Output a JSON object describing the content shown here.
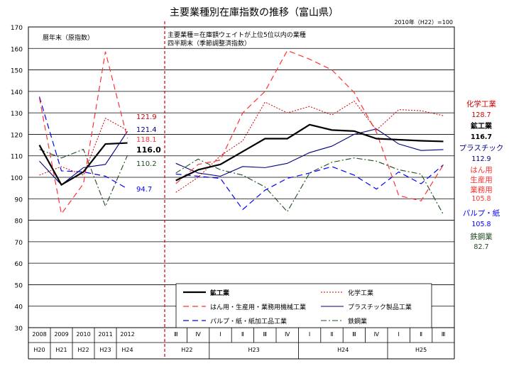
{
  "chart_data": {
    "type": "line",
    "title": "主要業種別在庫指数の推移（富山県）",
    "base_note": "2010年（H22）=100",
    "ylim": [
      30,
      170
    ],
    "y_ticks": [
      30,
      40,
      50,
      60,
      70,
      80,
      90,
      100,
      110,
      120,
      130,
      140,
      150,
      160,
      170
    ],
    "grid": true,
    "left_panel": {
      "caption": "暦年末（原指数）",
      "categories": [
        "2008",
        "2009",
        "2010",
        "2011",
        "2012"
      ],
      "era_labels": [
        "H20",
        "H21",
        "H22",
        "H23",
        "H24"
      ]
    },
    "right_panel": {
      "caption_lines": [
        "主要業種＝在庫額ウェイトが上位5位以内の業種",
        "四半期末（季節調整済指数）"
      ],
      "quarter_labels": [
        "Ⅲ",
        "Ⅳ",
        "Ⅰ",
        "Ⅱ",
        "Ⅲ",
        "Ⅳ",
        "Ⅰ",
        "Ⅱ",
        "Ⅲ",
        "Ⅳ",
        "Ⅰ",
        "Ⅱ",
        "Ⅲ"
      ],
      "year_groups": [
        {
          "label": "H22",
          "span": 2
        },
        {
          "label": "H23",
          "span": 4
        },
        {
          "label": "H24",
          "span": 4
        },
        {
          "label": "H25",
          "span": 3
        }
      ]
    },
    "series": [
      {
        "key": "mining",
        "name": "鉱工業",
        "color": "#000000",
        "annual": [
          115,
          96.5,
          102.5,
          115.5,
          116.0
        ],
        "quarterly": [
          98.5,
          103.5,
          106,
          112,
          118,
          118,
          124.5,
          122,
          121.5,
          118,
          117.5,
          117,
          116.7
        ]
      },
      {
        "key": "chemical",
        "name": "化学工業",
        "color": "#cc0000",
        "annual": [
          101,
          105,
          101,
          127.5,
          121.9
        ],
        "quarterly": [
          93,
          100,
          110,
          117,
          135,
          130,
          133,
          129,
          135.5,
          122,
          131.5,
          131,
          128.7
        ]
      },
      {
        "key": "machinery",
        "name": "はん用・生産用・業務用機械工業",
        "color": "#ff3333",
        "annual": [
          137,
          83,
          97,
          158.5,
          118.1
        ],
        "quarterly": [
          97,
          106,
          108,
          130,
          140,
          159,
          155,
          150,
          139.5,
          121,
          91.5,
          89,
          105.8
        ]
      },
      {
        "key": "plastic",
        "name": "プラスチック製品工業",
        "color": "#000080",
        "annual": [
          107.5,
          96.5,
          104.5,
          106,
          121.4
        ],
        "quarterly": [
          106.5,
          102,
          100.5,
          105,
          104.5,
          106.5,
          111.5,
          114.5,
          120,
          122.5,
          115.5,
          112.5,
          112.9
        ]
      },
      {
        "key": "pulp",
        "name": "パルプ・紙・紙加工品工業",
        "color": "#0000ff",
        "annual": [
          137.5,
          103,
          102.5,
          100.5,
          94.7
        ],
        "quarterly": [
          101.5,
          100.5,
          99.5,
          85,
          94,
          99.5,
          102,
          105,
          101,
          94.5,
          102.5,
          97,
          105.8
        ]
      },
      {
        "key": "steel",
        "name": "鉄鋼業",
        "color": "#1f4d1f",
        "annual": [
          113,
          109,
          113,
          86.5,
          110.2
        ],
        "quarterly": [
          102,
          108.5,
          103.5,
          101,
          95.5,
          84,
          102,
          107,
          109,
          107.5,
          103.5,
          101.5,
          82.7
        ]
      }
    ],
    "annual_end_labels": [
      {
        "series": "chemical",
        "text": "121.9"
      },
      {
        "series": "plastic",
        "text": "121.4"
      },
      {
        "series": "machinery",
        "text": "118.1"
      },
      {
        "series": "mining",
        "text": "116.0"
      },
      {
        "series": "steel",
        "text": "110.2"
      },
      {
        "series": "pulp",
        "text": "94.7"
      }
    ],
    "quarterly_end_labels": [
      {
        "series": "chemical",
        "name": "化学工業",
        "value": "128.7"
      },
      {
        "series": "mining",
        "name": "鉱工業",
        "value": "116.7"
      },
      {
        "series": "plastic",
        "name": "プラスチック",
        "value": "112.9"
      },
      {
        "series": "machinery",
        "name": "はん用\n生産用\n業務用",
        "value": "105.8"
      },
      {
        "series": "pulp",
        "name": "パルプ・紙",
        "value": "105.8"
      },
      {
        "series": "steel",
        "name": "鉄鋼業",
        "value": "82.7"
      }
    ],
    "legend": {
      "placement": "bottom-center",
      "entries": [
        {
          "series": "mining",
          "label": "鉱工業"
        },
        {
          "series": "chemical",
          "label": "化学工業"
        },
        {
          "series": "machinery",
          "label": "はん用・生産用・業務用機械工業"
        },
        {
          "series": "plastic",
          "label": "プラスチック製品工業"
        },
        {
          "series": "pulp",
          "label": "パルプ・紙・紙加工品工業"
        },
        {
          "series": "steel",
          "label": "鉄鋼業"
        }
      ]
    }
  }
}
